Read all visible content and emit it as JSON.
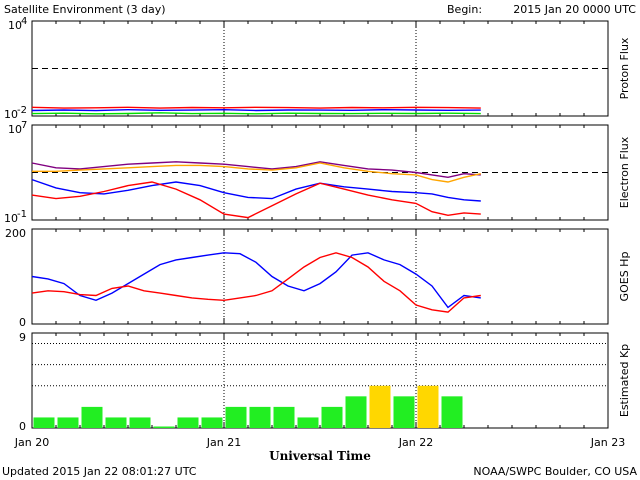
{
  "header": {
    "title": "Satellite Environment (3 day)",
    "begin_label": "Begin:",
    "begin_value": "2015 Jan 20 0000 UTC"
  },
  "footer": {
    "updated": "Updated 2015 Jan 22 08:01:27 UTC",
    "credit": "NOAA/SWPC Boulder, CO USA"
  },
  "x_axis": {
    "label": "Universal Time",
    "ticks": [
      "Jan 20",
      "Jan 21",
      "Jan 22",
      "Jan 23"
    ]
  },
  "colors": {
    "red": "#ff0000",
    "blue": "#0000ff",
    "green": "#00e000",
    "purple": "#800080",
    "orange": "#ffa500",
    "kp_green": "#22ee22",
    "kp_yellow": "#ffd700"
  },
  "chart_data": [
    {
      "type": "line",
      "ylabel": "Proton Flux",
      "y_ticks": [
        {
          "base": "10",
          "exp": "4"
        },
        {
          "base": "10",
          "exp": "-2"
        }
      ],
      "ylim_log10": [
        -2,
        4
      ],
      "threshold_log10": 1,
      "x_hours": [
        0,
        4,
        8,
        12,
        16,
        20,
        24,
        28,
        32,
        36,
        40,
        44,
        48,
        52,
        56.1
      ],
      "series": [
        {
          "color": "red",
          "values_log10": [
            -1.45,
            -1.5,
            -1.48,
            -1.45,
            -1.5,
            -1.46,
            -1.48,
            -1.45,
            -1.47,
            -1.5,
            -1.46,
            -1.48,
            -1.45,
            -1.47,
            -1.5
          ]
        },
        {
          "color": "blue",
          "values_log10": [
            -1.65,
            -1.62,
            -1.66,
            -1.6,
            -1.64,
            -1.63,
            -1.6,
            -1.65,
            -1.62,
            -1.63,
            -1.64,
            -1.6,
            -1.62,
            -1.64,
            -1.63
          ]
        },
        {
          "color": "green",
          "values_log10": [
            -1.85,
            -1.82,
            -1.86,
            -1.84,
            -1.8,
            -1.85,
            -1.83,
            -1.86,
            -1.82,
            -1.84,
            -1.85,
            -1.83,
            -1.84,
            -1.82,
            -1.85
          ]
        }
      ]
    },
    {
      "type": "line",
      "ylabel": "Electron Flux",
      "y_ticks": [
        {
          "base": "10",
          "exp": "7"
        },
        {
          "base": "10",
          "exp": "-1"
        }
      ],
      "ylim_log10": [
        -1,
        7
      ],
      "threshold_log10": 3,
      "x_hours": [
        0,
        3,
        6,
        9,
        12,
        15,
        18,
        21,
        24,
        27,
        30,
        33,
        36,
        39,
        42,
        45,
        48,
        50,
        52,
        54,
        56.1
      ],
      "series": [
        {
          "color": "purple",
          "values_log10": [
            3.8,
            3.4,
            3.3,
            3.5,
            3.7,
            3.8,
            3.9,
            3.8,
            3.7,
            3.5,
            3.3,
            3.5,
            3.9,
            3.6,
            3.3,
            3.2,
            3.0,
            2.8,
            2.6,
            2.9,
            2.8
          ]
        },
        {
          "color": "orange",
          "values_log10": [
            3.1,
            3.1,
            3.2,
            3.3,
            3.4,
            3.5,
            3.6,
            3.6,
            3.5,
            3.3,
            3.2,
            3.4,
            3.8,
            3.4,
            3.1,
            2.9,
            2.8,
            2.4,
            2.2,
            2.6,
            2.9
          ]
        },
        {
          "color": "blue",
          "values_log10": [
            2.4,
            1.7,
            1.3,
            1.2,
            1.5,
            1.9,
            2.2,
            1.9,
            1.3,
            0.9,
            0.8,
            1.6,
            2.1,
            1.8,
            1.6,
            1.4,
            1.3,
            1.2,
            0.9,
            0.7,
            0.6
          ]
        },
        {
          "color": "red",
          "values_log10": [
            1.1,
            0.8,
            1.0,
            1.4,
            1.9,
            2.2,
            1.6,
            0.7,
            -0.5,
            -0.8,
            0.2,
            1.2,
            2.1,
            1.6,
            1.1,
            0.7,
            0.4,
            -0.3,
            -0.6,
            -0.4,
            -0.5
          ]
        }
      ]
    },
    {
      "type": "line",
      "ylabel": "GOES Hp",
      "y_ticks": [
        "200",
        "0"
      ],
      "ylim": [
        0,
        200
      ],
      "x_hours": [
        0,
        2,
        4,
        6,
        8,
        10,
        12,
        14,
        16,
        18,
        20,
        22,
        24,
        26,
        28,
        30,
        32,
        34,
        36,
        38,
        40,
        42,
        44,
        46,
        48,
        50,
        52,
        54,
        56.1
      ],
      "series": [
        {
          "color": "blue",
          "values": [
            100,
            95,
            85,
            60,
            50,
            65,
            85,
            105,
            125,
            135,
            140,
            145,
            150,
            148,
            130,
            100,
            80,
            70,
            85,
            110,
            145,
            150,
            135,
            125,
            105,
            80,
            35,
            60,
            55
          ]
        },
        {
          "color": "red",
          "values": [
            65,
            70,
            68,
            62,
            60,
            75,
            80,
            70,
            65,
            60,
            55,
            52,
            50,
            55,
            60,
            70,
            95,
            120,
            140,
            150,
            140,
            120,
            90,
            70,
            40,
            30,
            25,
            55,
            60
          ]
        }
      ]
    },
    {
      "type": "bar",
      "ylabel": "Estimated Kp",
      "y_ticks": [
        "9",
        "0"
      ],
      "ylim": [
        0,
        9
      ],
      "dotted_levels": [
        4,
        6,
        8
      ],
      "bar_hours": 3,
      "values": [
        1,
        1,
        2,
        1,
        1,
        0,
        1,
        1,
        2,
        2,
        2,
        1,
        2,
        3,
        4,
        3,
        4,
        3
      ],
      "bar_colors": [
        "kp_green",
        "kp_green",
        "kp_green",
        "kp_green",
        "kp_green",
        "kp_green",
        "kp_green",
        "kp_green",
        "kp_green",
        "kp_green",
        "kp_green",
        "kp_green",
        "kp_green",
        "kp_green",
        "kp_yellow",
        "kp_green",
        "kp_yellow",
        "kp_green"
      ]
    }
  ]
}
